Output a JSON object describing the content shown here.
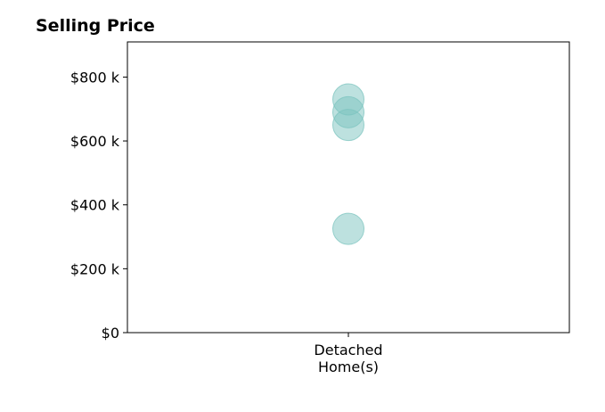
{
  "chart_data": {
    "type": "scatter",
    "title": "Selling Price",
    "xlabel": "",
    "ylabel": "",
    "categories": [
      [
        "Detached",
        "Home(s)"
      ]
    ],
    "x": [
      0,
      0,
      0,
      0
    ],
    "y": [
      730000,
      690000,
      650000,
      325000
    ],
    "ylim": [
      0,
      910000
    ],
    "yticks": [
      0,
      200000,
      400000,
      600000,
      800000
    ],
    "ytick_labels": [
      "$0",
      "$200 k",
      "$400 k",
      "$600 k",
      "$800 k"
    ],
    "grid": false,
    "legend": "none",
    "marker_color": "#7cc4bf"
  }
}
